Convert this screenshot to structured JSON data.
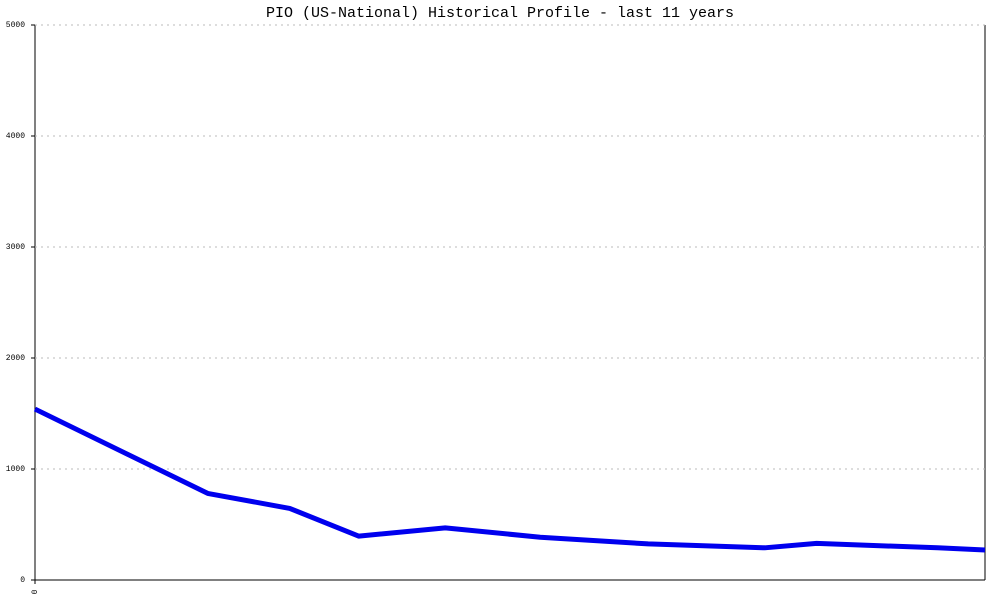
{
  "chart_data": {
    "type": "line",
    "title": "PIO (US-National) Historical Profile - last 11 years",
    "series": [
      {
        "color": "#0000ee",
        "x": [
          0,
          2.0,
          2.95,
          3.75,
          4.75,
          5.85,
          7.1,
          8.45,
          9.05,
          10.45,
          11
        ],
        "values": [
          1540,
          780,
          645,
          395,
          470,
          385,
          325,
          290,
          330,
          290,
          270
        ]
      }
    ],
    "xlim": [
      0,
      11
    ],
    "xticks": [
      0
    ],
    "ylim": [
      0,
      5000
    ],
    "yticks": [
      0,
      1000,
      2000,
      3000,
      4000,
      5000
    ],
    "grid": true
  }
}
